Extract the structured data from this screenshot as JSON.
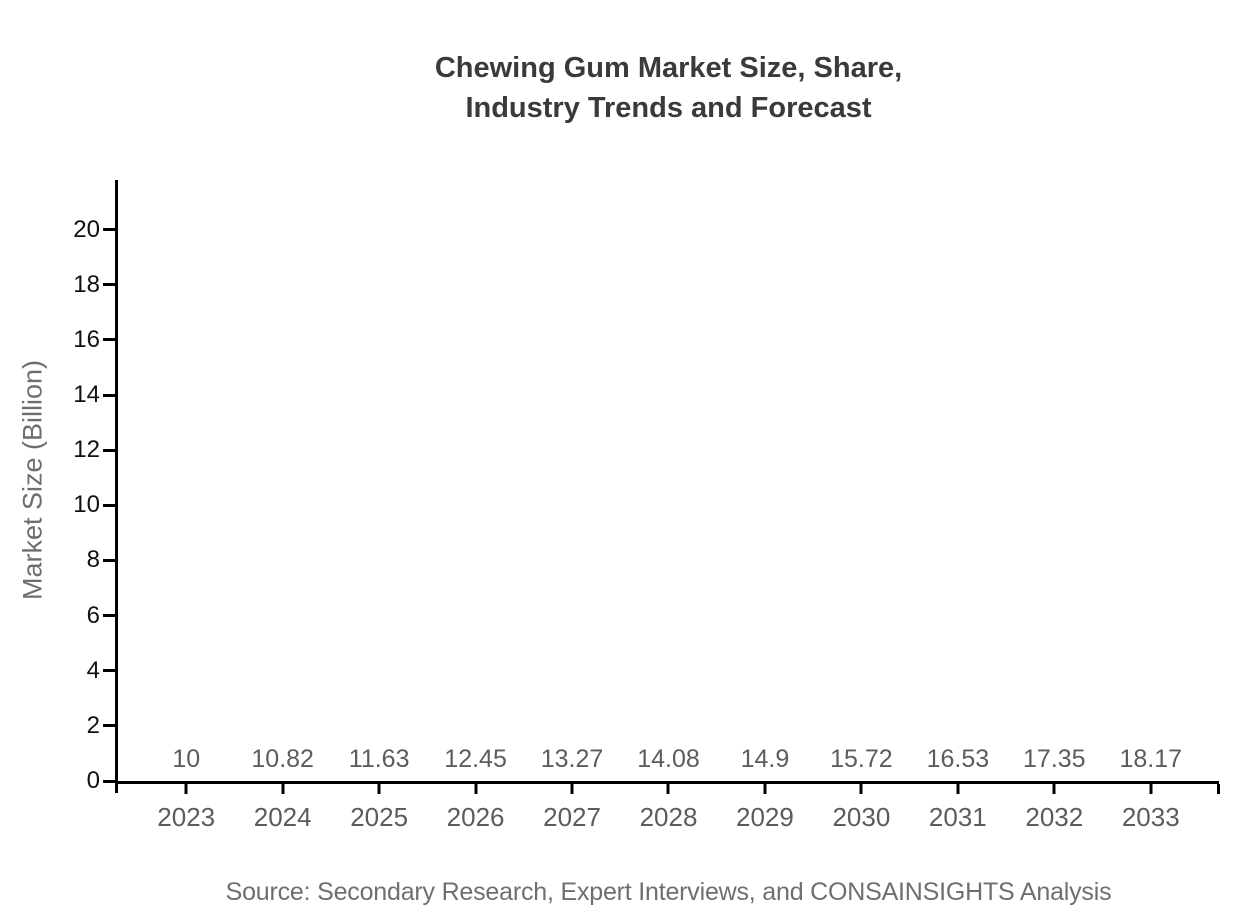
{
  "chart_data": {
    "type": "bar",
    "title": "Chewing Gum Market Size, Share, Industry Trends and Forecast",
    "title_lines": [
      "Chewing Gum Market Size, Share,",
      "Industry Trends and Forecast"
    ],
    "categories": [
      "2023",
      "2024",
      "2025",
      "2026",
      "2027",
      "2028",
      "2029",
      "2030",
      "2031",
      "2032",
      "2033"
    ],
    "values": [
      10,
      10.82,
      11.63,
      12.45,
      13.27,
      14.08,
      14.9,
      15.72,
      16.53,
      17.35,
      18.17
    ],
    "xlabel": "",
    "ylabel": "Market Size (Billion)",
    "yticks": [
      0,
      2,
      4,
      6,
      8,
      10,
      12,
      14,
      16,
      18,
      20
    ],
    "ylim": [
      0,
      21.8
    ],
    "grid": "off",
    "legend": "none",
    "source_note": "Source: Secondary Research, Expert Interviews, and CONSAINSIGHTS Analysis",
    "colors": {
      "bar_gradient_top": "#2491f8",
      "bar_gradient_bottom": "#4065de",
      "axis": "#000000",
      "title": "#3a3a3a",
      "ytick_label": "#111111",
      "category_label": "#5b5c5f",
      "value_label": "#5b5c5f",
      "ylabel": "#6e6e6e",
      "source": "#6f6f6f"
    }
  }
}
